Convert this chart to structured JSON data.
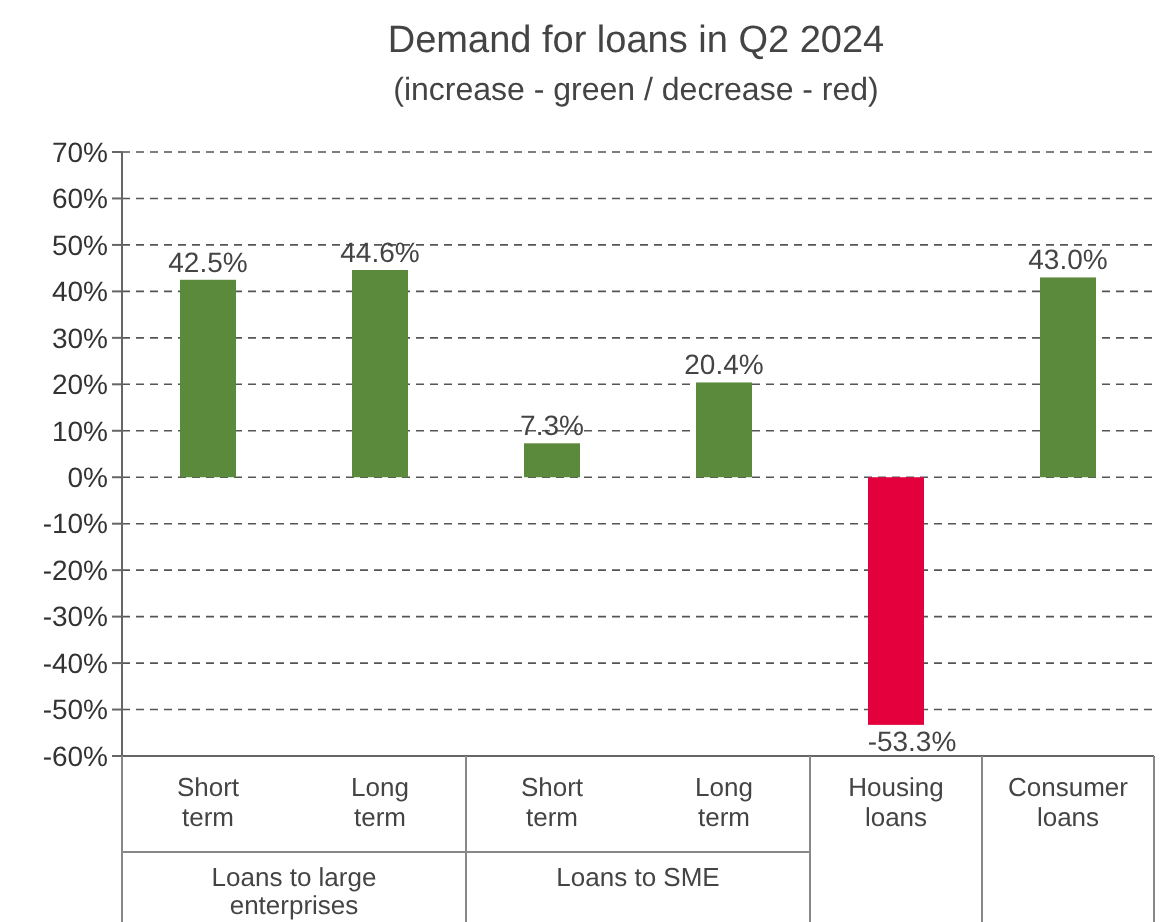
{
  "chart_data": {
    "type": "bar",
    "title": "Demand for loans in Q2 2024",
    "subtitle": "(increase - green / decrease - red)",
    "categories": [
      "Short term",
      "Long term",
      "Short term",
      "Long term",
      "Housing loans",
      "Consumer loans"
    ],
    "values": [
      42.5,
      44.6,
      7.3,
      20.4,
      -53.3,
      43.0
    ],
    "colors": [
      "#5b8a3c",
      "#5b8a3c",
      "#5b8a3c",
      "#5b8a3c",
      "#e4003d",
      "#5b8a3c"
    ],
    "value_labels": [
      "42.5%",
      "44.6%",
      "7.3%",
      "20.4%",
      "-53.3%",
      "43.0%"
    ],
    "ylim": [
      -60,
      70
    ],
    "yticks": [
      {
        "value": -60,
        "label": "-60%"
      },
      {
        "value": -50,
        "label": "-50%"
      },
      {
        "value": -40,
        "label": "-40%"
      },
      {
        "value": -30,
        "label": "-30%"
      },
      {
        "value": -20,
        "label": "-20%"
      },
      {
        "value": -10,
        "label": "-10%"
      },
      {
        "value": 0,
        "label": "0%"
      },
      {
        "value": 10,
        "label": "10%"
      },
      {
        "value": 20,
        "label": "20%"
      },
      {
        "value": 30,
        "label": "30%"
      },
      {
        "value": 40,
        "label": "40%"
      },
      {
        "value": 50,
        "label": "50%"
      },
      {
        "value": 60,
        "label": "60%"
      },
      {
        "value": 70,
        "label": "70%"
      }
    ],
    "grid": "y",
    "line_style": "dashed",
    "annotations": [
      "Loans to large enterprises",
      "Loans to SME"
    ]
  }
}
